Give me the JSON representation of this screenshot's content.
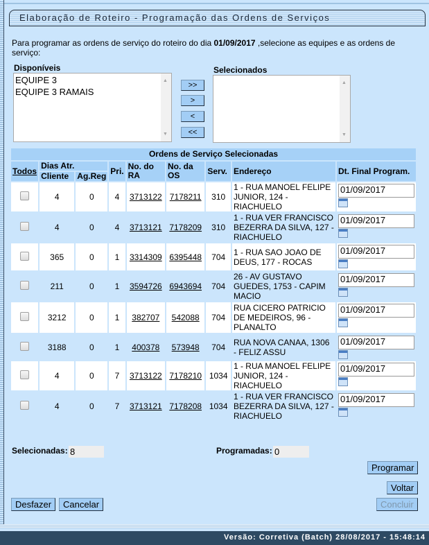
{
  "title": "Elaboração de Roteiro - Programação das Ordens de Serviços",
  "intro": {
    "before": "Para programar as ordens de serviço do roteiro do dia ",
    "date": "01/09/2017",
    "after": " ,selecione as equipes e as ordens de serviço:"
  },
  "disponiveis": {
    "label": "Disponíveis",
    "items": [
      "EQUIPE 3",
      "EQUIPE 3 RAMAIS"
    ]
  },
  "selecionados": {
    "label": "Selecionados",
    "items": []
  },
  "move_buttons": {
    "all_right": ">>",
    "right": ">",
    "left": "<",
    "all_left": "<<"
  },
  "table": {
    "caption": "Ordens de Serviço Selecionadas",
    "headers": {
      "todos": "Todos",
      "dias_atr": "Dias Atr.",
      "cliente": "Cliente",
      "agreg": "Ag.Reg",
      "pri": "Pri.",
      "ra": "No. do RA",
      "os": "No. da OS",
      "serv": "Serv.",
      "endereco": "Endereço",
      "dt": "Dt. Final Program."
    },
    "rows": [
      {
        "cliente": "4",
        "agreg": "0",
        "pri": "4",
        "ra": "3713122",
        "os": "7178211",
        "serv": "310",
        "endereco": "1 - RUA MANOEL FELIPE JUNIOR, 124 - RIACHUELO",
        "dt": "01/09/2017"
      },
      {
        "cliente": "4",
        "agreg": "0",
        "pri": "4",
        "ra": "3713121",
        "os": "7178209",
        "serv": "310",
        "endereco": "1 - RUA VER FRANCISCO BEZERRA DA SILVA, 127 - RIACHUELO",
        "dt": "01/09/2017"
      },
      {
        "cliente": "365",
        "agreg": "0",
        "pri": "1",
        "ra": "3314309",
        "os": "6395448",
        "serv": "704",
        "endereco": "1 - RUA SAO JOAO DE DEUS, 177 - ROCAS",
        "dt": "01/09/2017"
      },
      {
        "cliente": "211",
        "agreg": "0",
        "pri": "1",
        "ra": "3594726",
        "os": "6943694",
        "serv": "704",
        "endereco": "26 - AV GUSTAVO GUEDES, 1753 - CAPIM MACIO",
        "dt": "01/09/2017"
      },
      {
        "cliente": "3212",
        "agreg": "0",
        "pri": "1",
        "ra": "382707",
        "os": "542088",
        "serv": "704",
        "endereco": "RUA CICERO PATRICIO DE MEDEIROS, 96 - PLANALTO",
        "dt": "01/09/2017"
      },
      {
        "cliente": "3188",
        "agreg": "0",
        "pri": "1",
        "ra": "400378",
        "os": "573948",
        "serv": "704",
        "endereco": "RUA NOVA CANAA, 1306 - FELIZ ASSU",
        "dt": "01/09/2017"
      },
      {
        "cliente": "4",
        "agreg": "0",
        "pri": "7",
        "ra": "3713122",
        "os": "7178210",
        "serv": "1034",
        "endereco": "1 - RUA MANOEL FELIPE JUNIOR, 124 - RIACHUELO",
        "dt": "01/09/2017"
      },
      {
        "cliente": "4",
        "agreg": "0",
        "pri": "7",
        "ra": "3713121",
        "os": "7178208",
        "serv": "1034",
        "endereco": "1 - RUA VER FRANCISCO BEZERRA DA SILVA, 127 - RIACHUELO",
        "dt": "01/09/2017"
      }
    ]
  },
  "counts": {
    "selecionadas_label": "Selecionadas:",
    "selecionadas": "8",
    "programadas_label": "Programadas:",
    "programadas": "0"
  },
  "buttons": {
    "programar": "Programar",
    "voltar": "Voltar",
    "desfazer": "Desfazer",
    "cancelar": "Cancelar",
    "concluir": "Concluir"
  },
  "footer": "Versão: Corretiva (Batch) 28/08/2017 - 15:48:14",
  "colors": {
    "background": "#cbe5fc",
    "header": "#a6d1f7",
    "button": "#a2cdf5",
    "footer": "#2e4a63"
  }
}
